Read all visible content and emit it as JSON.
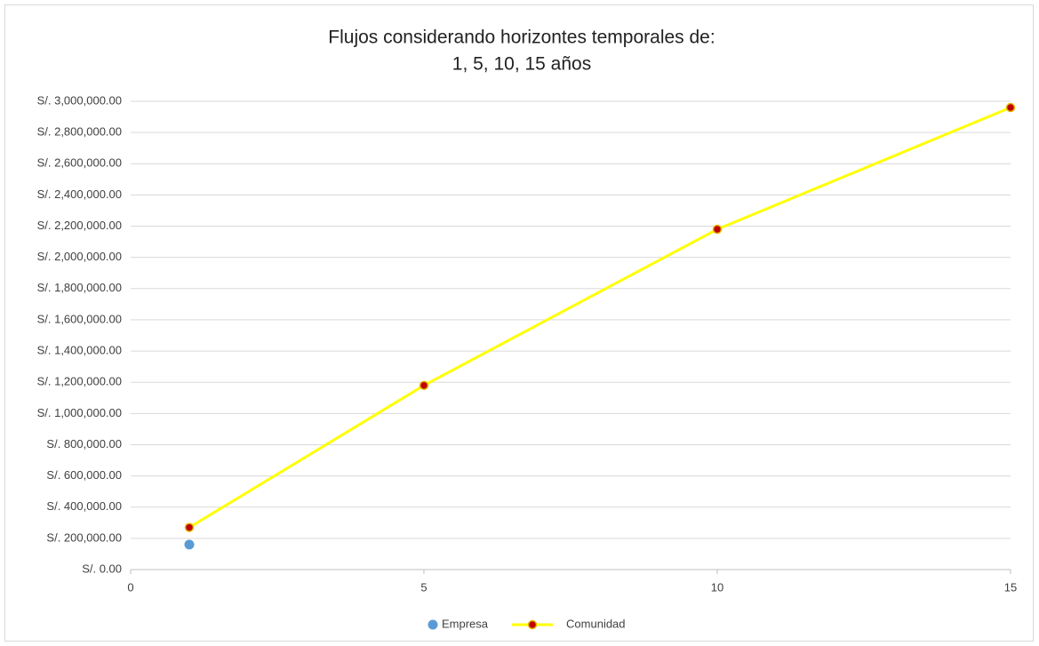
{
  "chart_data": {
    "type": "line",
    "title": [
      "Flujos considerando horizontes temporales de:",
      "1, 5, 10, 15 años"
    ],
    "series": [
      {
        "name": "Empresa",
        "mode": "markers",
        "color": "#5b9bd5",
        "x": [
          1
        ],
        "values": [
          160000
        ]
      },
      {
        "name": "Comunidad",
        "mode": "lines+markers",
        "color": "#ffff00",
        "marker_color": "#c00000",
        "x": [
          1,
          5,
          10,
          15
        ],
        "values": [
          270000,
          1180000,
          2180000,
          2960000
        ]
      }
    ],
    "xlim": [
      0,
      15
    ],
    "xticks": [
      0,
      5,
      10,
      15
    ],
    "ylim": [
      0,
      3000000
    ],
    "yticks": [
      {
        "value": 0,
        "label": "S/. 0.00"
      },
      {
        "value": 200000,
        "label": "S/. 200,000.00"
      },
      {
        "value": 400000,
        "label": "S/. 400,000.00"
      },
      {
        "value": 600000,
        "label": "S/. 600,000.00"
      },
      {
        "value": 800000,
        "label": "S/. 800,000.00"
      },
      {
        "value": 1000000,
        "label": "S/. 1,000,000.00"
      },
      {
        "value": 1200000,
        "label": "S/. 1,200,000.00"
      },
      {
        "value": 1400000,
        "label": "S/. 1,400,000.00"
      },
      {
        "value": 1600000,
        "label": "S/. 1,600,000.00"
      },
      {
        "value": 1800000,
        "label": "S/. 1,800,000.00"
      },
      {
        "value": 2000000,
        "label": "S/. 2,000,000.00"
      },
      {
        "value": 2200000,
        "label": "S/. 2,200,000.00"
      },
      {
        "value": 2400000,
        "label": "S/. 2,400,000.00"
      },
      {
        "value": 2600000,
        "label": "S/. 2,600,000.00"
      },
      {
        "value": 2800000,
        "label": "S/. 2,800,000.00"
      },
      {
        "value": 3000000,
        "label": "S/. 3,000,000.00"
      }
    ],
    "grid": true,
    "legend": "bottom"
  }
}
